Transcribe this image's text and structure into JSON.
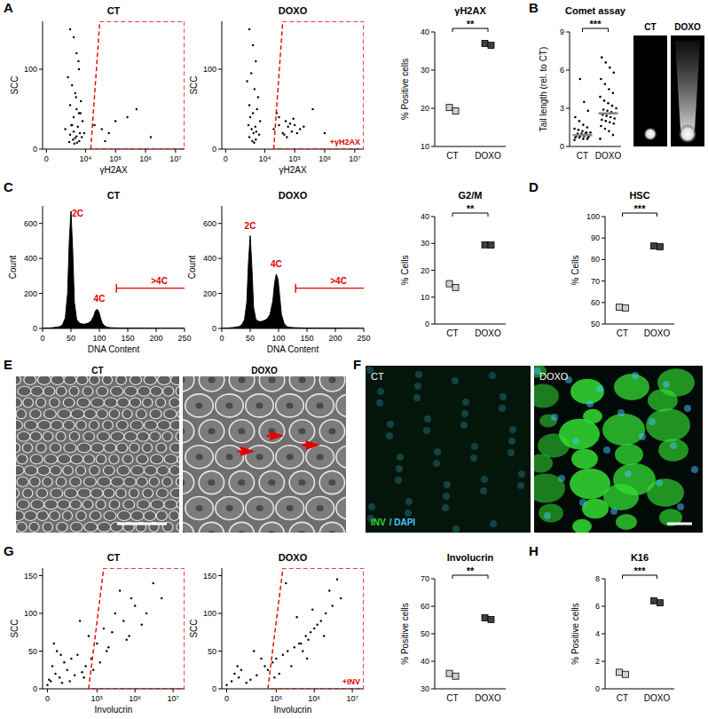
{
  "chart_data": [
    {
      "type": "scatter",
      "panel_label": "A",
      "title": "CT",
      "x_label": "γH2AX",
      "y_label": "SCC",
      "color": "#000000",
      "marker": "dot",
      "xlim": [
        -300,
        20000000
      ],
      "xticks": [
        0,
        {
          "value": 10000,
          "label": "10⁴"
        },
        {
          "value": 100000,
          "label": "10⁵"
        },
        {
          "value": 1000000,
          "label": "10⁶"
        },
        {
          "value": 10000000,
          "label": "10⁷"
        }
      ],
      "ylim": [
        0,
        160
      ],
      "yticks": [
        0,
        100
      ],
      "x": [
        3000,
        4000,
        5000,
        6000,
        2500,
        3500,
        4500,
        7000,
        3000,
        5000,
        6000,
        4000,
        8000,
        3500,
        5500,
        2000,
        4000,
        6500,
        3000,
        5000,
        7500,
        4500,
        3800,
        6200,
        2800,
        5200,
        4200,
        9000,
        3300,
        6800,
        4800,
        5800,
        20000,
        35000,
        60000,
        100000,
        250000,
        500000,
        1500000,
        45000
      ],
      "y": [
        150,
        140,
        120,
        100,
        90,
        80,
        70,
        60,
        55,
        50,
        45,
        40,
        35,
        30,
        28,
        25,
        22,
        20,
        18,
        16,
        15,
        14,
        12,
        10,
        9,
        8,
        7,
        20,
        30,
        45,
        65,
        110,
        30,
        25,
        20,
        35,
        40,
        50,
        15,
        10
      ],
      "gate": {
        "x": [
          15000,
          30000,
          20000000,
          20000000
        ],
        "y": [
          0,
          160,
          160,
          0
        ]
      }
    },
    {
      "type": "scatter",
      "title": "DOXO",
      "x_label": "γH2AX",
      "y_label": "SCC",
      "color": "#000000",
      "marker": "dot",
      "xlim": [
        -300,
        20000000
      ],
      "xticks": [
        0,
        {
          "value": 10000,
          "label": "10⁴"
        },
        {
          "value": 100000,
          "label": "10⁵"
        },
        {
          "value": 1000000,
          "label": "10⁶"
        },
        {
          "value": 10000000,
          "label": "10⁷"
        }
      ],
      "ylim": [
        0,
        160
      ],
      "yticks": [
        0,
        100
      ],
      "x": [
        3000,
        4000,
        5000,
        3500,
        2500,
        4500,
        6000,
        3000,
        5500,
        4000,
        3200,
        7000,
        2800,
        4800,
        3600,
        5200,
        4200,
        6500,
        3000,
        5000,
        3800,
        4400,
        20000,
        30000,
        40000,
        50000,
        60000,
        80000,
        100000,
        150000,
        30000,
        45000,
        70000,
        120000,
        25000,
        55000,
        90000,
        200000,
        400000,
        1000000
      ],
      "y": [
        150,
        130,
        110,
        95,
        85,
        75,
        65,
        55,
        50,
        45,
        40,
        35,
        30,
        28,
        25,
        22,
        20,
        18,
        15,
        12,
        10,
        8,
        25,
        30,
        20,
        35,
        28,
        22,
        30,
        25,
        40,
        18,
        32,
        20,
        45,
        15,
        38,
        28,
        50,
        20
      ],
      "gate": {
        "x": [
          20000,
          40000,
          20000000,
          20000000
        ],
        "y": [
          0,
          160,
          160,
          0
        ]
      },
      "gate_label": "+γH2AX"
    },
    {
      "type": "dot",
      "title": "γH2AX",
      "y_label": "% Positive cells",
      "categories": [
        "CT",
        "DOXO"
      ],
      "values": [
        [
          20.2,
          19.3
        ],
        [
          37.0,
          36.5
        ]
      ],
      "colors": [
        "#d0d0d0",
        "#404040"
      ],
      "marker": "square",
      "ylim": [
        10,
        40
      ],
      "yticks": [
        10,
        20,
        30,
        40
      ],
      "significance": "**"
    },
    {
      "type": "strip",
      "panel_label": "B",
      "title": "Comet assay",
      "y_label": "Tail length (rel. to CT)",
      "categories": [
        "CT",
        "DOXO"
      ],
      "values": [
        [
          0.5,
          0.6,
          0.6,
          0.7,
          0.7,
          0.7,
          0.8,
          0.8,
          0.8,
          0.8,
          0.9,
          0.9,
          0.9,
          0.9,
          1.0,
          1.0,
          1.0,
          1.1,
          1.1,
          1.2,
          1.3,
          1.4,
          1.5,
          1.7,
          2.0,
          2.3,
          2.8,
          3.5,
          5.3
        ],
        [
          0.6,
          0.9,
          1.2,
          1.4,
          1.6,
          1.8,
          1.9,
          2.0,
          2.1,
          2.2,
          2.3,
          2.4,
          2.5,
          2.6,
          2.7,
          2.8,
          2.9,
          3.0,
          3.2,
          3.4,
          3.6,
          3.9,
          4.2,
          4.5,
          4.9,
          5.3,
          5.8,
          6.2,
          6.6,
          7.0
        ]
      ],
      "means": [
        0.9,
        2.6
      ],
      "color": "#000000",
      "ylim": [
        0,
        9
      ],
      "yticks": [
        0,
        3,
        6,
        9
      ],
      "significance": "***"
    },
    {
      "type": "image",
      "labels": [
        "CT",
        "DOXO"
      ]
    },
    {
      "type": "area",
      "panel_label": "C",
      "title": "CT",
      "x_label": "DNA Content",
      "y_label": "Count",
      "color": "#000000",
      "x": [
        0,
        10,
        20,
        30,
        35,
        40,
        44,
        47,
        50,
        53,
        56,
        60,
        65,
        70,
        75,
        80,
        85,
        90,
        93,
        96,
        99,
        102,
        105,
        110,
        115,
        120,
        130,
        140,
        160,
        180,
        200,
        220,
        250
      ],
      "values": [
        0,
        2,
        5,
        10,
        20,
        60,
        200,
        500,
        670,
        450,
        150,
        50,
        30,
        25,
        25,
        30,
        40,
        70,
        100,
        110,
        95,
        60,
        30,
        12,
        6,
        4,
        3,
        2,
        1,
        1,
        0,
        0,
        0
      ],
      "xlim": [
        0,
        250
      ],
      "xticks": [
        0,
        50,
        100,
        150,
        200,
        250
      ],
      "ylim": [
        0,
        700
      ],
      "yticks": [
        0,
        200,
        400,
        600
      ],
      "annotations": [
        {
          "text": "2C",
          "x": 62,
          "y": 640
        },
        {
          "text": "4C",
          "x": 100,
          "y": 150
        }
      ],
      "bracket": {
        "label": ">4C",
        "x": [
          130,
          250
        ],
        "y": 230
      }
    },
    {
      "type": "area",
      "title": "DOXO",
      "x_label": "DNA Content",
      "y_label": "Count",
      "color": "#000000",
      "x": [
        0,
        10,
        20,
        30,
        35,
        40,
        44,
        47,
        50,
        53,
        56,
        60,
        65,
        70,
        75,
        80,
        85,
        90,
        93,
        96,
        99,
        102,
        105,
        110,
        115,
        120,
        130,
        140,
        160,
        180,
        200,
        220,
        250
      ],
      "values": [
        0,
        2,
        5,
        10,
        20,
        50,
        150,
        380,
        530,
        350,
        120,
        50,
        40,
        40,
        45,
        55,
        80,
        160,
        260,
        310,
        280,
        180,
        80,
        25,
        10,
        6,
        4,
        3,
        2,
        1,
        1,
        0,
        0
      ],
      "xlim": [
        0,
        250
      ],
      "xticks": [
        0,
        50,
        100,
        150,
        200,
        250
      ],
      "ylim": [
        0,
        700
      ],
      "yticks": [
        0,
        200,
        400,
        600
      ],
      "annotations": [
        {
          "text": "2C",
          "x": 50,
          "y": 570
        },
        {
          "text": "4C",
          "x": 96,
          "y": 350
        }
      ],
      "bracket": {
        "label": ">4C",
        "x": [
          130,
          250
        ],
        "y": 230
      }
    },
    {
      "type": "dot",
      "title": "G2/M",
      "y_label": "% Cells",
      "categories": [
        "CT",
        "DOXO"
      ],
      "values": [
        [
          15.0,
          13.6
        ],
        [
          29.5,
          29.4
        ]
      ],
      "colors": [
        "#d0d0d0",
        "#404040"
      ],
      "marker": "square",
      "ylim": [
        0,
        40
      ],
      "yticks": [
        0,
        10,
        20,
        30,
        40
      ],
      "significance": "**"
    },
    {
      "type": "dot",
      "panel_label": "D",
      "title": "HSC",
      "y_label": "% Cells",
      "categories": [
        "CT",
        "DOXO"
      ],
      "values": [
        [
          57.8,
          57.4
        ],
        [
          86.3,
          86.0
        ]
      ],
      "colors": [
        "#d0d0d0",
        "#404040"
      ],
      "marker": "square",
      "ylim": [
        50,
        100
      ],
      "yticks": [
        50,
        60,
        70,
        80,
        90,
        100
      ],
      "significance": "***"
    },
    {
      "type": "image",
      "panel_label": "E",
      "labels": [
        "CT",
        "DOXO"
      ]
    },
    {
      "type": "image",
      "panel_label": "F",
      "labels": [
        "CT",
        "DOXO"
      ],
      "stain": [
        {
          "text": "INV",
          "color": "#33dd33"
        },
        {
          "text": "/ DAPI",
          "color": "#44c8ff"
        }
      ]
    },
    {
      "type": "scatter",
      "panel_label": "G",
      "title": "CT",
      "x_label": "Involucrin",
      "y_label": "SCC",
      "color": "#000000",
      "marker": "dot",
      "xlim": [
        -3000,
        20000000
      ],
      "xticks": [
        0,
        {
          "value": 100000,
          "label": "10⁵"
        },
        {
          "value": 1000000,
          "label": "10⁶"
        },
        {
          "value": 10000000,
          "label": "10⁷"
        }
      ],
      "ylim": [
        0,
        160
      ],
      "yticks": [
        0,
        50,
        100,
        150
      ],
      "x": [
        0,
        2000,
        5000,
        10000,
        3000,
        8000,
        15000,
        20000,
        1000,
        6000,
        12000,
        25000,
        4000,
        30000,
        40000,
        50000,
        70000,
        100000,
        150000,
        200000,
        300000,
        500000,
        800000,
        1000000,
        60000,
        120000,
        250000,
        400000,
        2000000,
        3000000,
        1500000,
        600000,
        18000,
        9000,
        35000,
        80000,
        180000,
        700000,
        5000000,
        45000
      ],
      "y": [
        5,
        10,
        20,
        8,
        30,
        15,
        25,
        40,
        12,
        50,
        35,
        18,
        60,
        45,
        22,
        30,
        40,
        60,
        80,
        55,
        100,
        90,
        120,
        110,
        70,
        35,
        75,
        130,
        100,
        140,
        85,
        65,
        10,
        45,
        90,
        25,
        50,
        70,
        120,
        15
      ],
      "gate": {
        "x": [
          60000,
          150000,
          20000000,
          20000000
        ],
        "y": [
          0,
          160,
          160,
          0
        ]
      }
    },
    {
      "type": "scatter",
      "title": "DOXO",
      "x_label": "Involucrin",
      "y_label": "SCC",
      "color": "#000000",
      "marker": "dot",
      "xlim": [
        -3000,
        20000000
      ],
      "xticks": [
        0,
        {
          "value": 100000,
          "label": "10⁵"
        },
        {
          "value": 1000000,
          "label": "10⁶"
        },
        {
          "value": 10000000,
          "label": "10⁷"
        }
      ],
      "ylim": [
        0,
        160
      ],
      "yticks": [
        0,
        50,
        100,
        150
      ],
      "x": [
        0,
        3000,
        8000,
        15000,
        5000,
        20000,
        10000,
        30000,
        50000,
        80000,
        100000,
        150000,
        200000,
        300000,
        400000,
        600000,
        800000,
        1000000,
        1500000,
        2000000,
        3000000,
        5000000,
        250000,
        500000,
        120000,
        700000,
        1200000,
        60000,
        350000,
        900000,
        2500000,
        180000,
        40000,
        7000,
        450000,
        1800000,
        90000,
        650000,
        4000000,
        25000
      ],
      "y": [
        5,
        10,
        15,
        8,
        20,
        12,
        25,
        18,
        30,
        35,
        40,
        45,
        50,
        55,
        60,
        70,
        75,
        80,
        90,
        100,
        110,
        120,
        30,
        50,
        20,
        65,
        85,
        25,
        95,
        105,
        130,
        140,
        40,
        30,
        60,
        70,
        15,
        40,
        145,
        50
      ],
      "gate": {
        "x": [
          60000,
          150000,
          20000000,
          20000000
        ],
        "y": [
          0,
          160,
          160,
          0
        ]
      },
      "gate_label": "+INV"
    },
    {
      "type": "dot",
      "title": "Involucrin",
      "y_label": "% Positive cells",
      "categories": [
        "CT",
        "DOXO"
      ],
      "values": [
        [
          35.6,
          34.6
        ],
        [
          55.8,
          55.2
        ]
      ],
      "colors": [
        "#d0d0d0",
        "#404040"
      ],
      "marker": "square",
      "ylim": [
        30,
        70
      ],
      "yticks": [
        30,
        40,
        50,
        60,
        70
      ],
      "significance": "**"
    },
    {
      "type": "dot",
      "panel_label": "H",
      "title": "K16",
      "y_label": "% Positive cells",
      "categories": [
        "CT",
        "DOXO"
      ],
      "values": [
        [
          1.2,
          1.05
        ],
        [
          6.4,
          6.25
        ]
      ],
      "colors": [
        "#d0d0d0",
        "#404040"
      ],
      "marker": "square",
      "ylim": [
        0,
        8
      ],
      "yticks": [
        0,
        2,
        4,
        6,
        8
      ],
      "significance": "***"
    }
  ]
}
